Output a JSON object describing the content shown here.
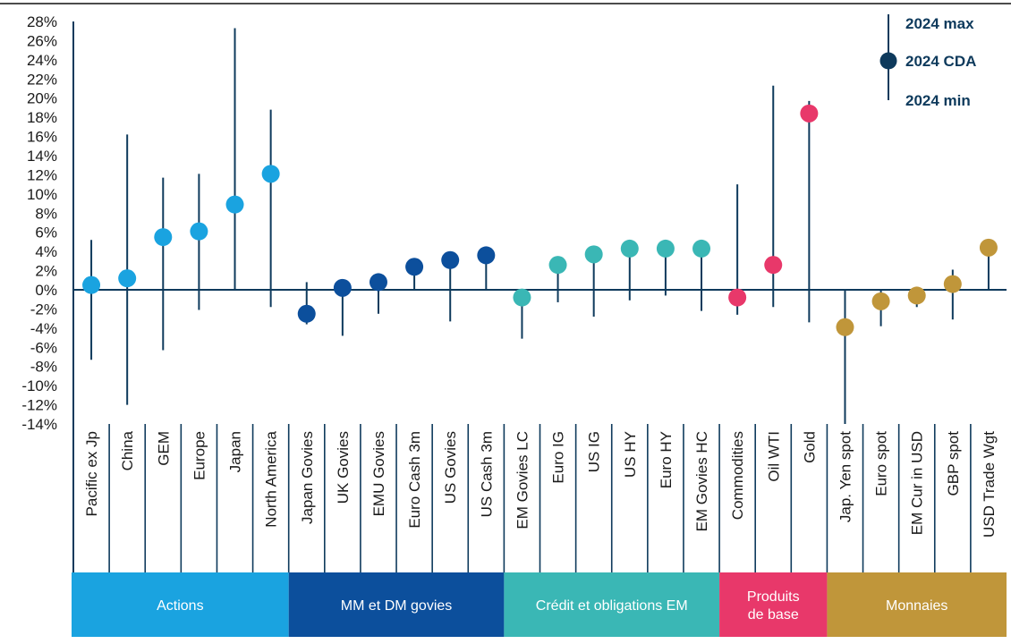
{
  "chart_data": {
    "type": "scatter",
    "yaxis": {
      "min": -14,
      "max": 28,
      "step": 2,
      "tick_labels": [
        "28%",
        "26%",
        "24%",
        "22%",
        "20%",
        "18%",
        "16%",
        "14%",
        "12%",
        "10%",
        "8%",
        "6%",
        "4%",
        "2%",
        "0%",
        "-2%",
        "-4%",
        "-6%",
        "-8%",
        "-10%",
        "-12%",
        "-14%"
      ]
    },
    "legend": {
      "position": "top-right",
      "max_label": "2024 max",
      "ytd_label": "2024 CDA",
      "min_label": "2024 min"
    },
    "groups": [
      {
        "label": "Actions",
        "color": "#1aa3e0",
        "count": 6
      },
      {
        "label": "MM et DM govies",
        "color": "#0c4f9c",
        "count": 6
      },
      {
        "label": "Crédit et obligations EM",
        "color": "#3ab7b5",
        "count": 6
      },
      {
        "label": "Produits de base",
        "color": "#e8386a",
        "count": 3
      },
      {
        "label": "Monnaies",
        "color": "#c0963a",
        "count": 5
      }
    ],
    "series": [
      {
        "category": "Pacific ex Jp",
        "ytd": 0.5,
        "max": 5.2,
        "min": -7.3,
        "color": "#1aa3e0"
      },
      {
        "category": "China",
        "ytd": 1.2,
        "max": 16.2,
        "min": -12.0,
        "color": "#1aa3e0"
      },
      {
        "category": "GEM",
        "ytd": 5.5,
        "max": 11.7,
        "min": -6.3,
        "color": "#1aa3e0"
      },
      {
        "category": "Europe",
        "ytd": 6.1,
        "max": 12.1,
        "min": -2.1,
        "color": "#1aa3e0"
      },
      {
        "category": "Japan",
        "ytd": 8.9,
        "max": 27.3,
        "min": 0.0,
        "color": "#1aa3e0"
      },
      {
        "category": "North America",
        "ytd": 12.1,
        "max": 18.8,
        "min": -1.8,
        "color": "#1aa3e0"
      },
      {
        "category": "Japan Govies",
        "ytd": -2.5,
        "max": 0.8,
        "min": -3.6,
        "color": "#0c4f9c"
      },
      {
        "category": "UK Govies",
        "ytd": 0.2,
        "max": 0.2,
        "min": -4.8,
        "color": "#0c4f9c"
      },
      {
        "category": "EMU Govies",
        "ytd": 0.8,
        "max": 0.8,
        "min": -2.5,
        "color": "#0c4f9c"
      },
      {
        "category": "Euro Cash 3m",
        "ytd": 2.4,
        "max": 2.4,
        "min": 0.0,
        "color": "#0c4f9c"
      },
      {
        "category": "US Govies",
        "ytd": 3.1,
        "max": 3.1,
        "min": -3.3,
        "color": "#0c4f9c"
      },
      {
        "category": "US Cash 3m",
        "ytd": 3.6,
        "max": 3.6,
        "min": 0.0,
        "color": "#0c4f9c"
      },
      {
        "category": "EM Govies LC",
        "ytd": -0.8,
        "max": -0.8,
        "min": -5.1,
        "color": "#3ab7b5"
      },
      {
        "category": "Euro IG",
        "ytd": 2.6,
        "max": 2.6,
        "min": -1.3,
        "color": "#3ab7b5"
      },
      {
        "category": "US IG",
        "ytd": 3.7,
        "max": 3.7,
        "min": -2.8,
        "color": "#3ab7b5"
      },
      {
        "category": "US HY",
        "ytd": 4.3,
        "max": 4.3,
        "min": -1.1,
        "color": "#3ab7b5"
      },
      {
        "category": "Euro HY",
        "ytd": 4.3,
        "max": 4.3,
        "min": -0.6,
        "color": "#3ab7b5"
      },
      {
        "category": "EM Govies HC",
        "ytd": 4.3,
        "max": 4.3,
        "min": -2.2,
        "color": "#3ab7b5"
      },
      {
        "category": "Commodities",
        "ytd": -0.8,
        "max": 11.0,
        "min": -2.6,
        "color": "#e8386a"
      },
      {
        "category": "Oil WTI",
        "ytd": 2.6,
        "max": 21.3,
        "min": -1.8,
        "color": "#e8386a"
      },
      {
        "category": "Gold",
        "ytd": 18.4,
        "max": 19.7,
        "min": -3.4,
        "color": "#e8386a"
      },
      {
        "category": "Jap. Yen spot",
        "ytd": -3.9,
        "max": 0.0,
        "min": -14.0,
        "color": "#c0963a"
      },
      {
        "category": "Euro spot",
        "ytd": -1.2,
        "max": 0.0,
        "min": -3.8,
        "color": "#c0963a"
      },
      {
        "category": "EM Cur in USD",
        "ytd": -0.6,
        "max": 0.0,
        "min": -1.8,
        "color": "#c0963a"
      },
      {
        "category": "GBP spot",
        "ytd": 0.6,
        "max": 2.1,
        "min": -3.1,
        "color": "#c0963a"
      },
      {
        "category": "USD Trade Wgt",
        "ytd": 4.4,
        "max": 4.4,
        "min": 0.0,
        "color": "#c0963a"
      }
    ]
  }
}
